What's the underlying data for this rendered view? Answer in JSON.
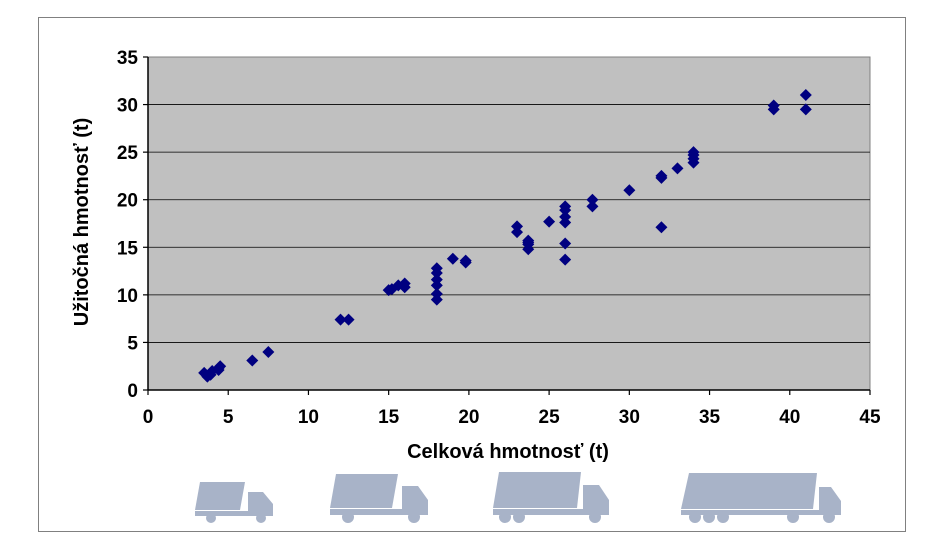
{
  "chart_data": {
    "type": "scatter",
    "title": "",
    "xlabel": "Celková hmotnosť (t)",
    "ylabel": "Užitočná hmotnosť (t)",
    "xlim": [
      0,
      45
    ],
    "ylim": [
      0,
      35
    ],
    "xticks": [
      0,
      5,
      10,
      15,
      20,
      25,
      30,
      35,
      40,
      45
    ],
    "yticks": [
      0,
      5,
      10,
      15,
      20,
      25,
      30,
      35
    ],
    "grid": "horizontal",
    "legend": "none",
    "plot_background": "#c0c0c0",
    "marker_color": "#000080",
    "series": [
      {
        "points": [
          [
            3.5,
            1.8
          ],
          [
            3.7,
            1.4
          ],
          [
            3.9,
            1.6
          ],
          [
            4.0,
            2.0
          ],
          [
            4.4,
            2.1
          ],
          [
            4.5,
            2.5
          ],
          [
            4.4,
            2.3
          ],
          [
            6.5,
            3.1
          ],
          [
            7.5,
            4.0
          ],
          [
            12.0,
            7.4
          ],
          [
            12.5,
            7.4
          ],
          [
            15.0,
            10.5
          ],
          [
            15.2,
            10.6
          ],
          [
            15.6,
            11.0
          ],
          [
            16.0,
            11.2
          ],
          [
            16.0,
            10.8
          ],
          [
            18.0,
            9.5
          ],
          [
            18.0,
            10.1
          ],
          [
            18.0,
            11.0
          ],
          [
            18.0,
            11.6
          ],
          [
            18.0,
            12.3
          ],
          [
            18.0,
            12.8
          ],
          [
            19.0,
            13.8
          ],
          [
            19.8,
            13.6
          ],
          [
            19.8,
            13.4
          ],
          [
            23.0,
            16.6
          ],
          [
            23.0,
            17.2
          ],
          [
            23.7,
            14.8
          ],
          [
            23.7,
            15.3
          ],
          [
            23.7,
            15.7
          ],
          [
            23.7,
            15.5
          ],
          [
            25.0,
            17.7
          ],
          [
            26.0,
            13.7
          ],
          [
            26.0,
            15.4
          ],
          [
            26.0,
            17.6
          ],
          [
            26.0,
            18.2
          ],
          [
            26.0,
            18.9
          ],
          [
            26.0,
            19.3
          ],
          [
            27.7,
            19.3
          ],
          [
            27.7,
            20.0
          ],
          [
            30.0,
            21.0
          ],
          [
            32.0,
            17.1
          ],
          [
            32.0,
            22.3
          ],
          [
            32.0,
            22.5
          ],
          [
            33.0,
            23.3
          ],
          [
            34.0,
            23.9
          ],
          [
            34.0,
            24.3
          ],
          [
            34.0,
            24.7
          ],
          [
            34.0,
            25.0
          ],
          [
            39.0,
            29.5
          ],
          [
            39.0,
            29.9
          ],
          [
            41.0,
            29.5
          ],
          [
            41.0,
            31.0
          ]
        ]
      }
    ]
  },
  "icons": [
    "small-truck-icon",
    "medium-truck-icon",
    "large-truck-icon",
    "semi-trailer-truck-icon"
  ]
}
